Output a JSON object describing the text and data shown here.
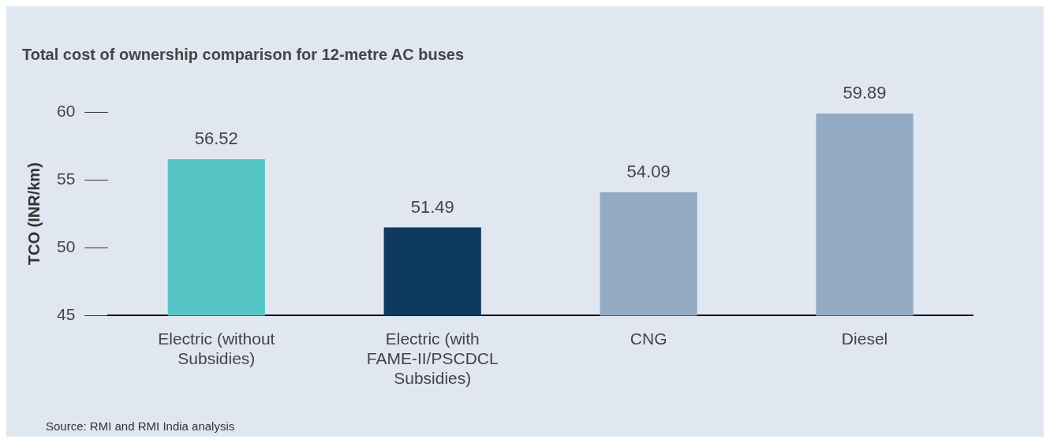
{
  "chart_data": {
    "type": "bar",
    "title": "Total cost of ownership comparison for 12-metre AC buses",
    "ylabel": "TCO (INR/km)",
    "categories": [
      "Electric (without Subsidies)",
      "Electric (with FAME-II/PSCDCL Subsidies)",
      "CNG",
      "Diesel"
    ],
    "values": [
      56.52,
      51.49,
      54.09,
      59.89
    ],
    "colors": [
      "#56c5c5",
      "#0e3a5f",
      "#92abc3",
      "#92abc3"
    ],
    "ylim": [
      45,
      60
    ],
    "yticks": [
      45,
      50,
      55,
      60
    ],
    "grid": false,
    "legend": false,
    "data_labels": true,
    "annotations": [
      "Source: RMI and RMI India analysis"
    ]
  }
}
